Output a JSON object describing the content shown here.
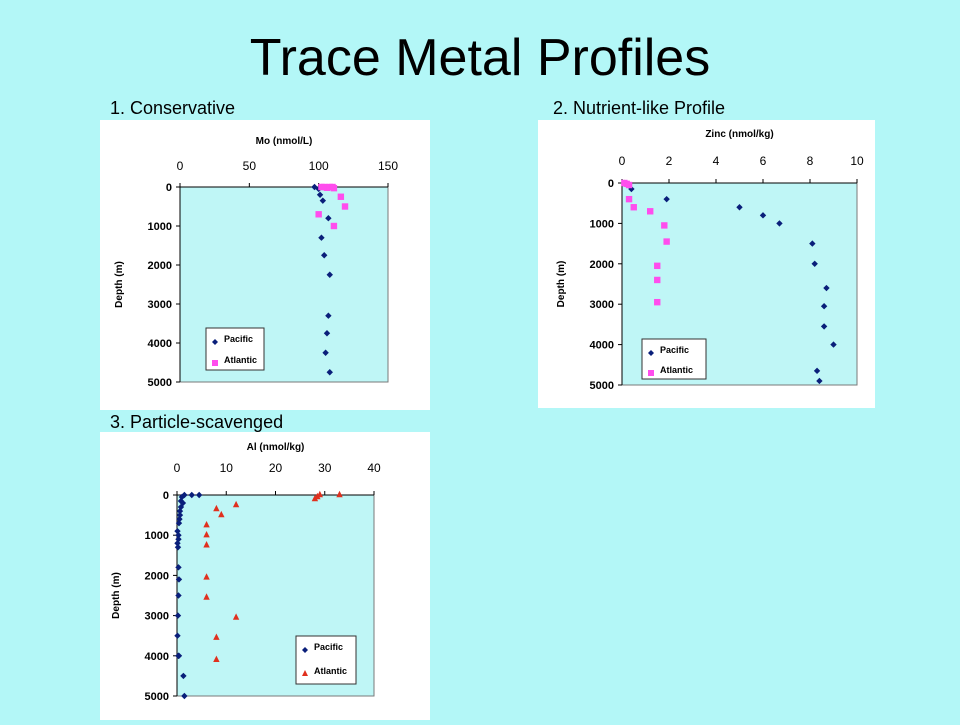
{
  "slide": {
    "title": "Trace Metal Profiles",
    "background": "#b3f7f7"
  },
  "colors": {
    "plot_bg": "#bff6f6",
    "pacific": "#0a1f7a",
    "atlantic_square": "#ff4ded",
    "atlantic_triangle": "#e0301e"
  },
  "chart_data": [
    {
      "label": "1. Conservative",
      "type": "scatter",
      "title": "Mo (nmol/L)",
      "ylabel": "Depth (m)",
      "xlim": [
        0,
        150
      ],
      "ylim": [
        0,
        5000
      ],
      "y_inverted": true,
      "x_ticks": [
        "0",
        "50",
        "100",
        "150"
      ],
      "y_ticks": [
        "0",
        "1000",
        "2000",
        "3000",
        "4000",
        "5000"
      ],
      "x_tick_values": [
        0,
        50,
        100,
        150
      ],
      "y_tick_values": [
        0,
        1000,
        2000,
        3000,
        4000,
        5000
      ],
      "legend_position": "bottom-left",
      "series": [
        {
          "name": "Pacific",
          "marker": "diamond",
          "color": "#0a1f7a",
          "x": [
            97,
            100,
            101,
            103,
            107,
            102,
            104,
            108,
            107,
            106,
            105,
            108
          ],
          "y": [
            0,
            50,
            200,
            350,
            800,
            1300,
            1750,
            2250,
            3300,
            3750,
            4250,
            4750
          ]
        },
        {
          "name": "Atlantic",
          "marker": "square",
          "color": "#ff4ded",
          "x": [
            102,
            104,
            106,
            108,
            110,
            111,
            116,
            119,
            100,
            111
          ],
          "y": [
            0,
            0,
            20,
            0,
            0,
            30,
            250,
            500,
            700,
            1000
          ]
        }
      ]
    },
    {
      "label": "2. Nutrient-like Profile",
      "type": "scatter",
      "title": "Zinc (nmol/kg)",
      "ylabel": "Depth (m)",
      "xlim": [
        0,
        10
      ],
      "ylim": [
        0,
        5000
      ],
      "y_inverted": true,
      "x_ticks": [
        "0",
        "2",
        "4",
        "6",
        "8",
        "10"
      ],
      "y_ticks": [
        "0",
        "1000",
        "2000",
        "3000",
        "4000",
        "5000"
      ],
      "x_tick_values": [
        0,
        2,
        4,
        6,
        8,
        10
      ],
      "y_tick_values": [
        0,
        1000,
        2000,
        3000,
        4000,
        5000
      ],
      "legend_position": "bottom-left",
      "series": [
        {
          "name": "Pacific",
          "marker": "diamond",
          "color": "#0a1f7a",
          "x": [
            0.1,
            0.3,
            0.4,
            1.9,
            5.0,
            6.0,
            6.7,
            8.1,
            8.2,
            8.7,
            8.6,
            8.6,
            9.0,
            8.3,
            8.4
          ],
          "y": [
            0,
            50,
            150,
            400,
            600,
            800,
            1000,
            1500,
            2000,
            2600,
            3050,
            3550,
            4000,
            4650,
            4900
          ]
        },
        {
          "name": "Atlantic",
          "marker": "square",
          "color": "#ff4ded",
          "x": [
            0.1,
            0.2,
            0.3,
            0.3,
            0.5,
            1.2,
            1.8,
            1.9,
            1.5,
            1.5,
            1.5
          ],
          "y": [
            0,
            20,
            50,
            400,
            600,
            700,
            1050,
            1450,
            2050,
            2400,
            2950
          ]
        }
      ]
    },
    {
      "label": "3. Particle-scavenged",
      "type": "scatter",
      "title": "Al (nmol/kg)",
      "ylabel": "Depth (m)",
      "xlim": [
        0,
        40
      ],
      "ylim": [
        0,
        5000
      ],
      "y_inverted": true,
      "x_ticks": [
        "0",
        "10",
        "20",
        "30",
        "40"
      ],
      "y_ticks": [
        "0",
        "1000",
        "2000",
        "3000",
        "4000",
        "5000"
      ],
      "x_tick_values": [
        0,
        10,
        20,
        30,
        40
      ],
      "y_tick_values": [
        0,
        1000,
        2000,
        3000,
        4000,
        5000
      ],
      "legend_position": "bottom-right",
      "series": [
        {
          "name": "Pacific",
          "marker": "diamond",
          "color": "#0a1f7a",
          "x": [
            4.5,
            3,
            1.5,
            1,
            0.8,
            1.2,
            0.8,
            0.6,
            0.6,
            0.5,
            0.4,
            0.1,
            0.3,
            0.3,
            0.1,
            0.2,
            0.3,
            0.4,
            0.3,
            0.2,
            0.1,
            0.3,
            0.3,
            0.4,
            1.3,
            1.5
          ],
          "y": [
            0,
            0,
            0,
            50,
            150,
            200,
            300,
            400,
            500,
            600,
            700,
            900,
            1000,
            1100,
            1200,
            1300,
            1800,
            2100,
            2500,
            3000,
            3500,
            4000,
            4000,
            4000,
            4500,
            5000
          ]
        },
        {
          "name": "Atlantic",
          "marker": "triangle",
          "color": "#e0301e",
          "x": [
            33,
            29,
            28.5,
            28,
            12,
            8,
            9,
            6,
            6,
            6,
            6,
            6,
            12,
            8,
            8
          ],
          "y": [
            0,
            0,
            50,
            100,
            250,
            350,
            500,
            750,
            1000,
            1250,
            2050,
            2550,
            3050,
            3550,
            4100
          ]
        }
      ]
    }
  ]
}
